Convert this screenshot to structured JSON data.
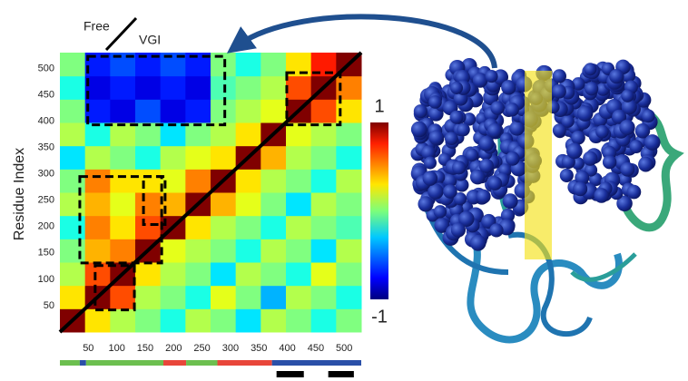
{
  "chart_data": {
    "type": "heatmap",
    "ylabel": "Residue Index",
    "xlim": [
      0,
      530
    ],
    "ylim": [
      0,
      530
    ],
    "xticks": [
      50,
      100,
      150,
      200,
      250,
      300,
      350,
      400,
      450,
      500
    ],
    "yticks": [
      50,
      100,
      150,
      200,
      250,
      300,
      350,
      400,
      450,
      500
    ],
    "clim": [
      -1,
      1
    ],
    "cticks": [
      1,
      -1
    ],
    "colormap": "jet",
    "triangle_labels": {
      "upper": "Free",
      "lower": "VGI"
    },
    "matrix": [
      [
        1,
        0.3,
        0.1,
        0,
        -0.2,
        0.1,
        0,
        -0.3,
        0.1,
        0,
        -0.2,
        0
      ],
      [
        0.3,
        1,
        0.6,
        0.1,
        0,
        -0.2,
        0.2,
        0,
        -0.4,
        0.1,
        0,
        -0.2
      ],
      [
        0.1,
        0.6,
        1,
        0.3,
        0.1,
        0,
        -0.3,
        0.1,
        0,
        -0.2,
        0.2,
        0
      ],
      [
        0,
        0.4,
        0.5,
        1,
        0.2,
        0.1,
        0,
        -0.2,
        0.1,
        0,
        -0.3,
        0.1
      ],
      [
        -0.2,
        0.5,
        0.3,
        0.6,
        1,
        0.3,
        0.1,
        0,
        -0.2,
        0.1,
        0,
        -0.1
      ],
      [
        0.1,
        0.4,
        0.2,
        0.5,
        0.4,
        1,
        0.4,
        0.2,
        0,
        -0.3,
        0.1,
        0
      ],
      [
        0,
        0.5,
        0.3,
        0.3,
        0.2,
        0.5,
        1,
        0.3,
        0.1,
        0,
        -0.2,
        0.1
      ],
      [
        -0.3,
        0.1,
        0,
        -0.2,
        0.1,
        0.2,
        0.3,
        1,
        0.4,
        0.1,
        0,
        -0.2
      ],
      [
        0.1,
        -0.2,
        0.1,
        0,
        -0.3,
        0,
        0.1,
        0.3,
        1,
        0.2,
        0.1,
        0
      ],
      [
        0,
        -0.7,
        -0.8,
        -0.6,
        -0.8,
        -0.7,
        0,
        0.1,
        0.2,
        1,
        0.6,
        0.3
      ],
      [
        -0.2,
        -0.8,
        -0.7,
        -0.8,
        -0.7,
        -0.8,
        -0.1,
        0,
        0.1,
        0.6,
        1,
        0.5
      ],
      [
        0,
        -0.7,
        -0.6,
        -0.7,
        -0.6,
        -0.7,
        0,
        -0.2,
        0,
        0.3,
        0.7,
        1
      ]
    ],
    "boxes": [
      {
        "x": [
          49,
          290
        ],
        "y": [
          393,
          523
        ]
      },
      {
        "x": [
          399,
          493
        ],
        "y": [
          393,
          492
        ]
      },
      {
        "x": [
          35,
          179
        ],
        "y": [
          131,
          295
        ]
      },
      {
        "x": [
          147,
          185
        ],
        "y": [
          204,
          295
        ]
      },
      {
        "x": [
          62,
          131
        ],
        "y": [
          42,
          126
        ]
      }
    ],
    "domains": [
      {
        "start": 0,
        "end": 35,
        "color": "#6cbf4f"
      },
      {
        "start": 35,
        "end": 46,
        "color": "#2a4fa8"
      },
      {
        "start": 46,
        "end": 182,
        "color": "#6cbf4f"
      },
      {
        "start": 182,
        "end": 222,
        "color": "#e8463a"
      },
      {
        "start": 222,
        "end": 277,
        "color": "#6cbf4f"
      },
      {
        "start": 277,
        "end": 373,
        "color": "#e8463a"
      },
      {
        "start": 373,
        "end": 530,
        "color": "#2a4fa8"
      }
    ],
    "segments": [
      {
        "start": 381,
        "end": 429
      },
      {
        "start": 472,
        "end": 517
      }
    ]
  }
}
